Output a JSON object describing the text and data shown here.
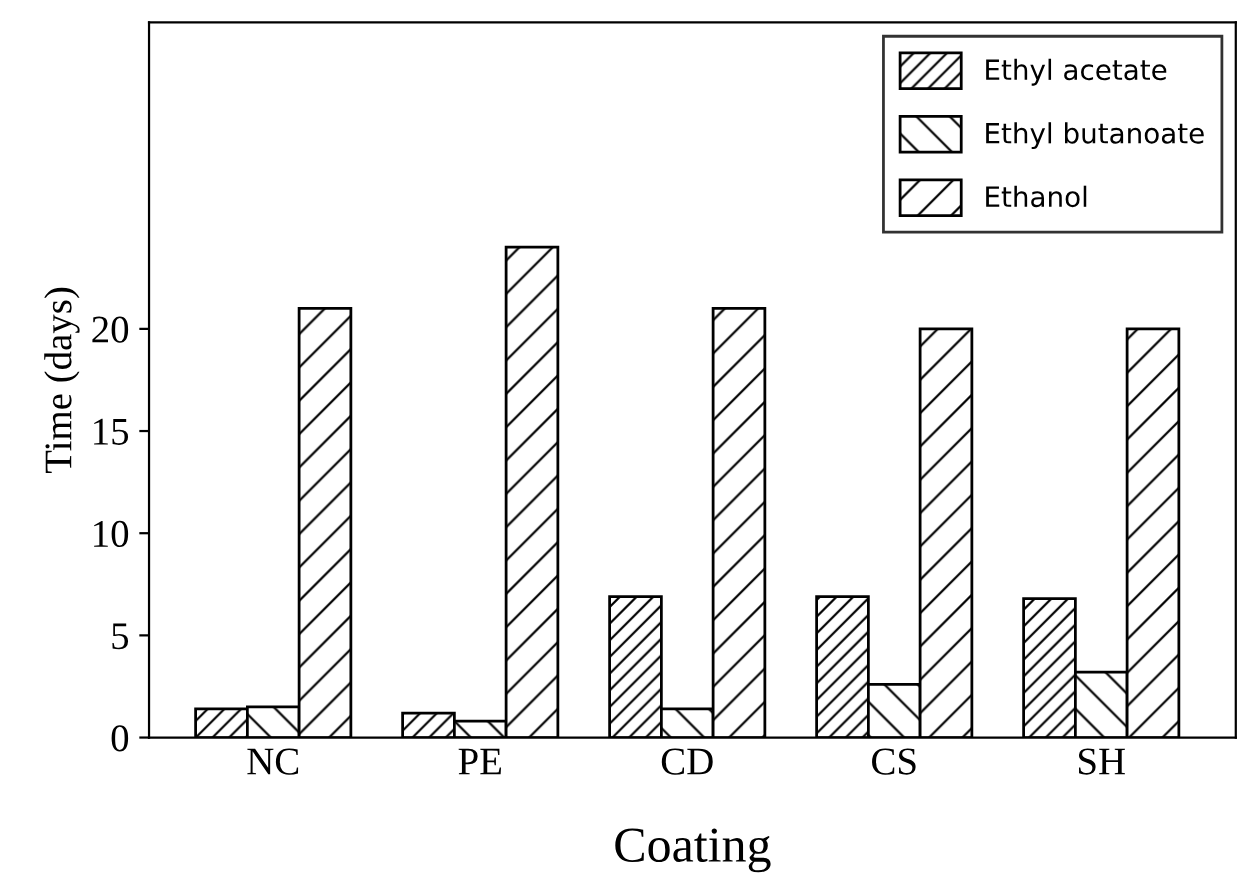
{
  "chart_data": {
    "type": "bar",
    "xlabel": "Coating",
    "ylabel": "Time (days)",
    "categories": [
      "NC",
      "PE",
      "CD",
      "CS",
      "SH"
    ],
    "series": [
      {
        "name": "Ethyl acetate",
        "color": "#000000",
        "values": [
          1.4,
          1.2,
          6.9,
          6.9,
          6.8
        ]
      },
      {
        "name": "Ethyl butanoate",
        "color": "#000000",
        "values": [
          1.5,
          0.8,
          1.4,
          2.6,
          3.2
        ]
      },
      {
        "name": "Ethanol",
        "color": "#000000",
        "values": [
          21,
          24,
          21,
          20,
          20
        ]
      }
    ],
    "ylim": [
      0,
      35
    ],
    "yticks": [
      0,
      5,
      10,
      15,
      20
    ],
    "grid": false,
    "legend": "top right"
  }
}
